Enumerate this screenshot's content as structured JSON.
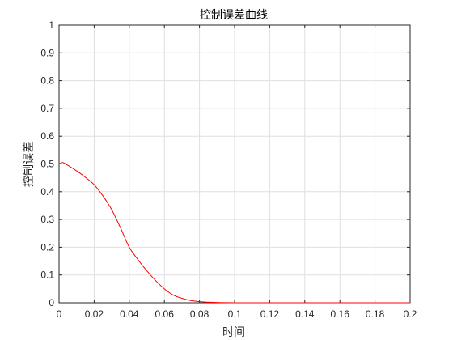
{
  "chart_data": {
    "type": "line",
    "title": "控制误差曲线",
    "xlabel": "时间",
    "ylabel": "控制误差",
    "xlim": [
      0,
      0.2
    ],
    "ylim": [
      0,
      1
    ],
    "grid": true,
    "x_ticks": [
      0,
      0.02,
      0.04,
      0.06,
      0.08,
      0.1,
      0.12,
      0.14,
      0.16,
      0.18,
      0.2
    ],
    "x_tick_labels": [
      "0",
      "0.02",
      "0.04",
      "0.06",
      "0.08",
      "0.1",
      "0.12",
      "0.14",
      "0.16",
      "0.18",
      "0.2"
    ],
    "y_ticks": [
      0,
      0.1,
      0.2,
      0.3,
      0.4,
      0.5,
      0.6,
      0.7,
      0.8,
      0.9,
      1
    ],
    "y_tick_labels": [
      "0",
      "0.1",
      "0.2",
      "0.3",
      "0.4",
      "0.5",
      "0.6",
      "0.7",
      "0.8",
      "0.9",
      "1"
    ],
    "series": [
      {
        "color": "#ff0000",
        "x": [
          0,
          0.002,
          0.005,
          0.01,
          0.015,
          0.02,
          0.025,
          0.03,
          0.035,
          0.04,
          0.045,
          0.05,
          0.055,
          0.06,
          0.065,
          0.07,
          0.075,
          0.08,
          0.085,
          0.09,
          0.1,
          0.12,
          0.14,
          0.16,
          0.18,
          0.2
        ],
        "y": [
          0.5,
          0.505,
          0.495,
          0.475,
          0.452,
          0.425,
          0.385,
          0.335,
          0.27,
          0.2,
          0.155,
          0.115,
          0.08,
          0.05,
          0.028,
          0.016,
          0.008,
          0.004,
          0.002,
          0.001,
          0,
          0,
          0,
          0,
          0,
          0
        ]
      }
    ]
  }
}
